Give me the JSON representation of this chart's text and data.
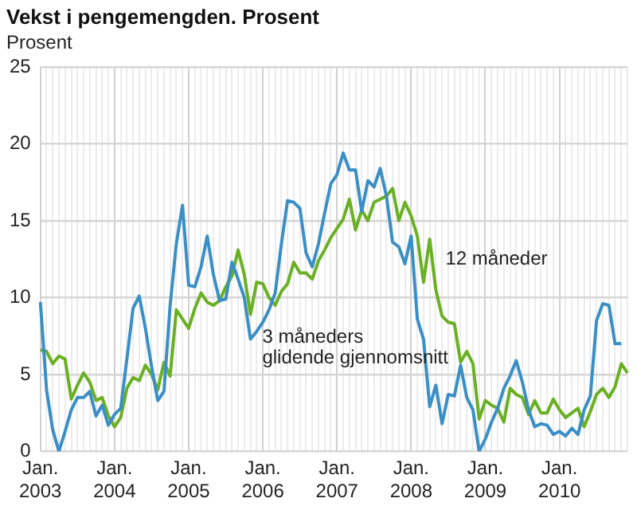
{
  "chart_data": {
    "type": "line",
    "title": "Vekst i pengemengden. Prosent",
    "ylabel": "Prosent",
    "categories": [
      "Jan. 2003",
      null,
      null,
      null,
      null,
      null,
      null,
      null,
      null,
      null,
      null,
      null,
      "Jan. 2004",
      null,
      null,
      null,
      null,
      null,
      null,
      null,
      null,
      null,
      null,
      null,
      "Jan. 2005",
      null,
      null,
      null,
      null,
      null,
      null,
      null,
      null,
      null,
      null,
      null,
      "Jan. 2006",
      null,
      null,
      null,
      null,
      null,
      null,
      null,
      null,
      null,
      null,
      null,
      "Jan. 2007",
      null,
      null,
      null,
      null,
      null,
      null,
      null,
      null,
      null,
      null,
      null,
      "Jan. 2008",
      null,
      null,
      null,
      null,
      null,
      null,
      null,
      null,
      null,
      null,
      null,
      "Jan. 2009",
      null,
      null,
      null,
      null,
      null,
      null,
      null,
      null,
      null,
      null,
      null,
      "Jan. 2010",
      null,
      null,
      null,
      null,
      null,
      null,
      null,
      null,
      null,
      null,
      null
    ],
    "series": [
      {
        "name": "3 måneders glidende gjennomsnitt",
        "color": "#3a8fc6",
        "values": [
          9.7,
          4.0,
          1.4,
          0,
          1.3,
          2.7,
          3.5,
          3.5,
          3.9,
          2.3,
          3.0,
          1.7,
          2.4,
          2.8,
          6.0,
          9.3,
          10.1,
          8.0,
          5.5,
          3.3,
          3.9,
          9.5,
          13.5,
          16.0,
          10.8,
          10.7,
          12.0,
          14.0,
          11.5,
          9.8,
          9.9,
          12.3,
          11.2,
          10.0,
          7.3,
          7.8,
          8.4,
          9.2,
          10.3,
          13.5,
          16.3,
          16.2,
          15.8,
          12.9,
          12.0,
          13.5,
          15.5,
          17.4,
          18.0,
          19.4,
          18.3,
          18.3,
          15.6,
          17.6,
          17.2,
          18.4,
          16.6,
          13.6,
          13.3,
          12.2,
          14.0,
          8.6,
          7.3,
          2.9,
          4.3,
          1.8,
          3.7,
          3.6,
          5.6,
          3.5,
          2.7,
          0,
          0.8,
          1.9,
          2.8,
          4.1,
          4.9,
          5.9,
          4.5,
          2.7,
          1.6,
          1.8,
          1.7,
          1.1,
          1.3,
          1.0,
          1.5,
          1.1,
          2.7,
          3.6,
          8.5,
          9.6,
          9.5,
          7.0,
          7.0,
          null
        ]
      },
      {
        "name": "12 måneder",
        "color": "#6ab023",
        "values": [
          6.6,
          6.5,
          5.7,
          6.2,
          6.0,
          3.4,
          4.3,
          5.1,
          4.5,
          3.3,
          3.5,
          2.3,
          1.6,
          2.2,
          4.1,
          4.8,
          4.6,
          5.6,
          5.0,
          4.0,
          5.8,
          4.9,
          9.2,
          8.6,
          8.0,
          9.3,
          10.3,
          9.7,
          9.5,
          9.8,
          10.7,
          11.4,
          13.1,
          11.5,
          8.9,
          11.0,
          10.9,
          10.0,
          9.5,
          10.4,
          10.9,
          12.3,
          11.6,
          11.6,
          11.2,
          12.4,
          13.1,
          13.9,
          14.5,
          15.1,
          16.4,
          14.4,
          15.7,
          15.0,
          16.2,
          16.4,
          16.6,
          17.1,
          15.0,
          16.2,
          15.3,
          14.0,
          11.0,
          13.8,
          10.5,
          8.8,
          8.4,
          8.3,
          5.8,
          6.5,
          5.7,
          2.1,
          3.3,
          3.0,
          2.8,
          1.9,
          4.1,
          3.7,
          3.5,
          2.4,
          3.3,
          2.5,
          2.5,
          3.4,
          2.7,
          2.2,
          2.5,
          2.8,
          1.6,
          2.6,
          3.7,
          4.1,
          3.5,
          4.2,
          5.7,
          5.1
        ]
      }
    ],
    "ylim": [
      0,
      25
    ],
    "yticks": [
      0,
      5,
      10,
      15,
      20,
      25
    ],
    "grid": true,
    "legend": false,
    "marker": "none",
    "line_style": "solid"
  }
}
